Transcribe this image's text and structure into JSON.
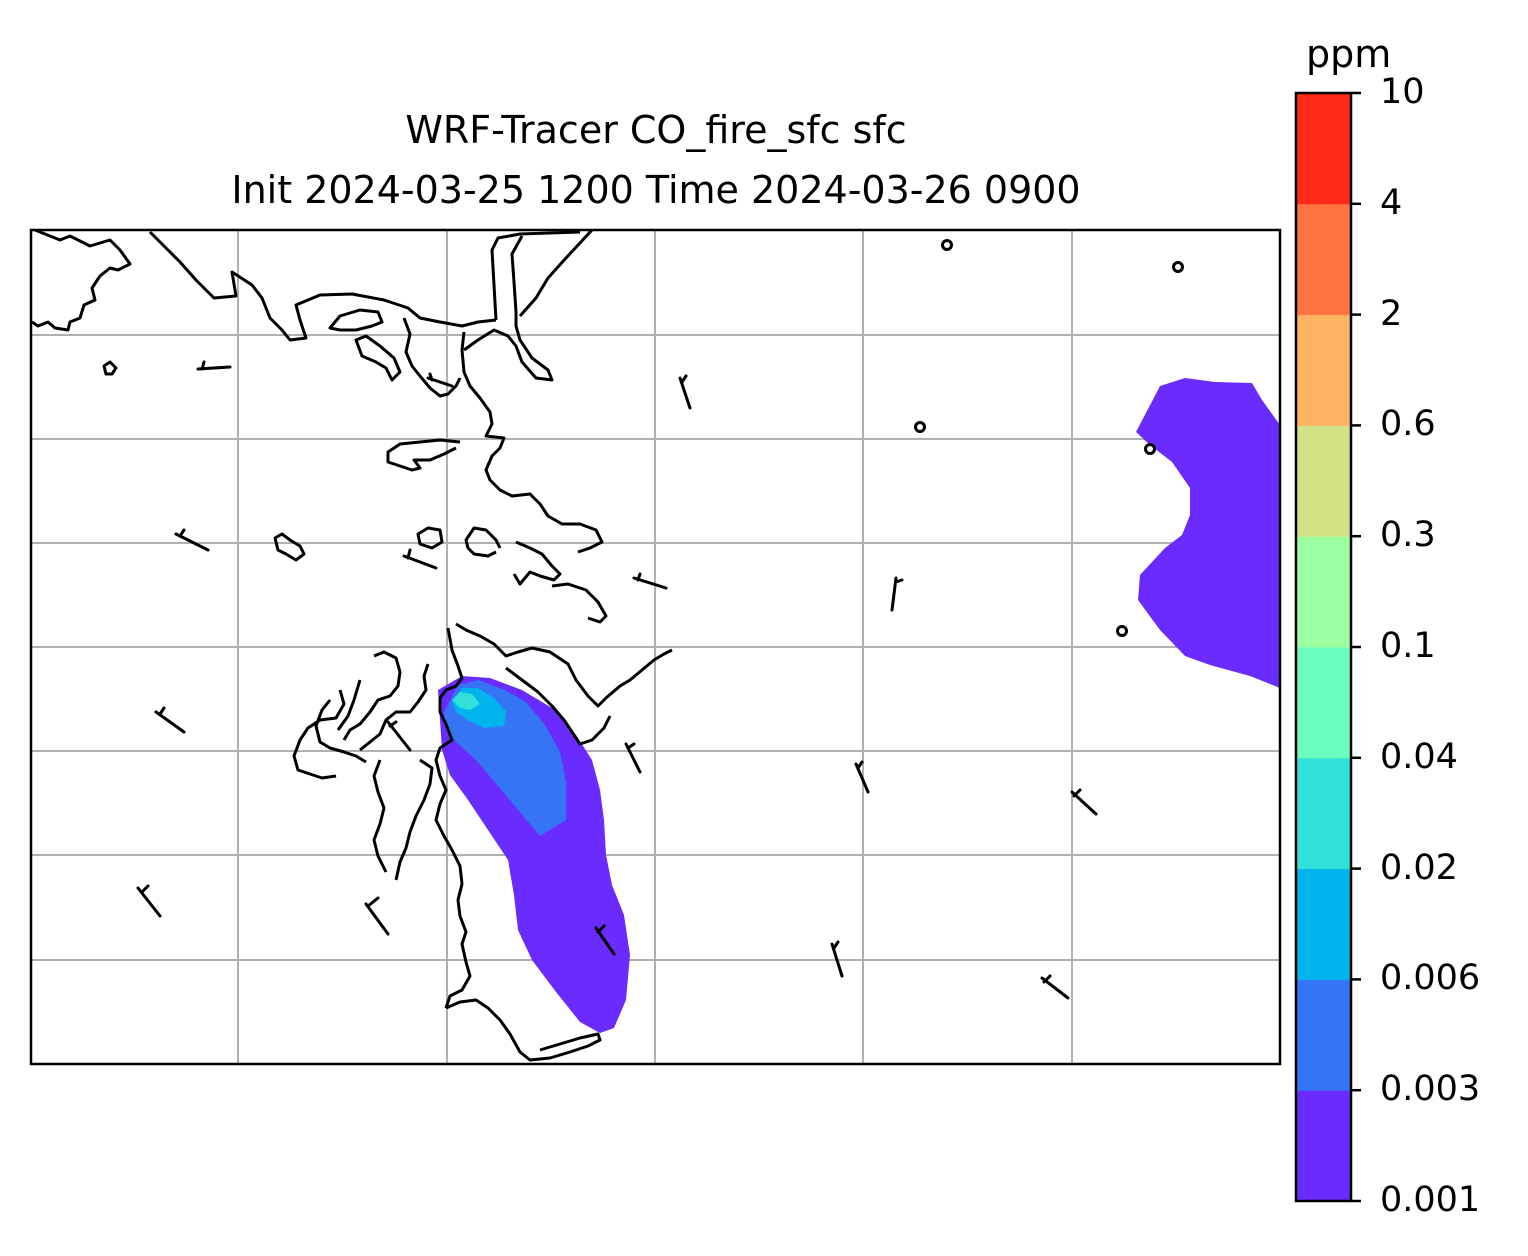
{
  "title": {
    "line1": "WRF-Tracer CO_fire_sfc sfc",
    "line2": "Init 2024-03-25 1200 Time 2024-03-26 0900"
  },
  "colorbar": {
    "unit": "ppm",
    "levels": [
      "0.001",
      "0.003",
      "0.006",
      "0.02",
      "0.04",
      "0.1",
      "0.3",
      "0.6",
      "2",
      "4",
      "10"
    ],
    "colors": [
      "#6a2bff",
      "#3575f5",
      "#00b4ed",
      "#31e1d9",
      "#6bffbf",
      "#9cffa0",
      "#d2e285",
      "#ffb464",
      "#ff7440",
      "#ff2a17"
    ]
  },
  "map": {
    "gridlines": true,
    "grid_color": "#b0b0b0",
    "coastline_color": "#000000",
    "plume_colors": {
      "low": "#6a2bff",
      "mid": "#3575f5",
      "high": "#00b4ed",
      "peak": "#31e1d9"
    }
  }
}
